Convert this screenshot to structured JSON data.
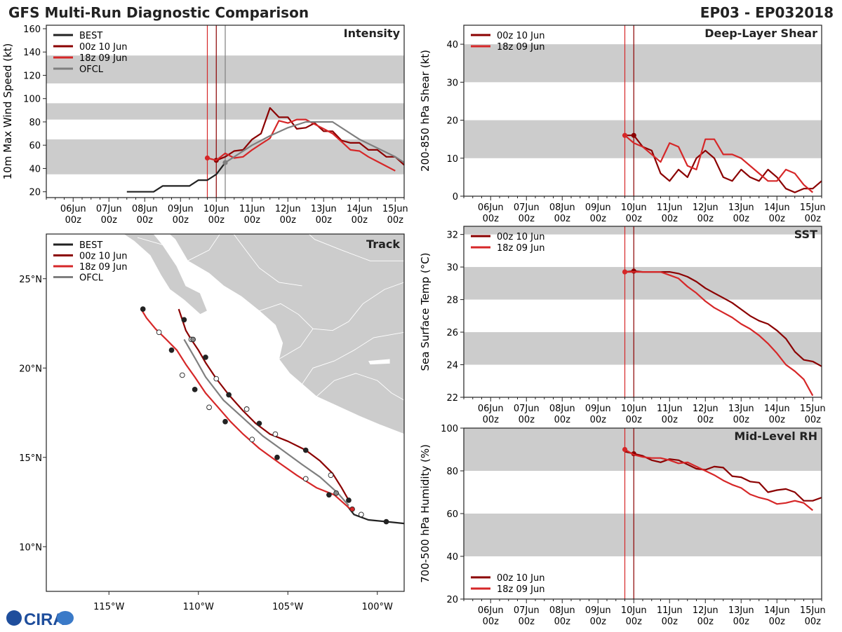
{
  "title_left": "GFS Multi-Run Diagnostic Comparison",
  "title_right": "EP03 - EP032018",
  "logo_text": "CIRA",
  "time_ticks": [
    {
      "t": 0,
      "l1": "06Jun",
      "l2": "00z"
    },
    {
      "t": 1,
      "l1": "07Jun",
      "l2": "00z"
    },
    {
      "t": 2,
      "l1": "08Jun",
      "l2": "00z"
    },
    {
      "t": 3,
      "l1": "09Jun",
      "l2": "00z"
    },
    {
      "t": 4,
      "l1": "10Jun",
      "l2": "00z"
    },
    {
      "t": 5,
      "l1": "11Jun",
      "l2": "00z"
    },
    {
      "t": 6,
      "l1": "12Jun",
      "l2": "00z"
    },
    {
      "t": 7,
      "l1": "13Jun",
      "l2": "00z"
    },
    {
      "t": 8,
      "l1": "14Jun",
      "l2": "00z"
    },
    {
      "t": 9,
      "l1": "15Jun",
      "l2": "00z"
    }
  ],
  "colors": {
    "best": "#222222",
    "run00z": "#8b0000",
    "run18z": "#d62728",
    "ofcl": "#7f7f7f",
    "band": "#cccccc",
    "land": "#cccccc"
  },
  "chart_data": [
    {
      "id": "intensity",
      "type": "line",
      "title": "Intensity",
      "ylabel": "10m Max Wind Speed (kt)",
      "xlim": [
        -0.75,
        9.25
      ],
      "ylim": [
        15,
        163
      ],
      "yticks": [
        20,
        40,
        60,
        80,
        100,
        120,
        140,
        160
      ],
      "bands": [
        [
          35,
          65
        ],
        [
          82,
          96
        ],
        [
          113,
          137
        ]
      ],
      "vlines": [
        {
          "t": 3.75,
          "color": "run18z"
        },
        {
          "t": 4.0,
          "color": "run00z"
        },
        {
          "t": 4.25,
          "color": "ofcl"
        }
      ],
      "legend_position": "top-left",
      "series": [
        {
          "name": "BEST",
          "color": "best",
          "t": [
            1.5,
            1.75,
            2,
            2.25,
            2.5,
            2.75,
            3,
            3.25,
            3.5,
            3.75,
            4,
            4.25
          ],
          "v": [
            20,
            20,
            20,
            20,
            25,
            25,
            25,
            25,
            30,
            30,
            35,
            45
          ]
        },
        {
          "name": "00z 10 Jun",
          "color": "run00z",
          "marker_t": 4.0,
          "t": [
            4,
            4.25,
            4.5,
            4.75,
            5,
            5.25,
            5.5,
            5.75,
            6,
            6.25,
            6.5,
            6.75,
            7,
            7.25,
            7.5,
            7.75,
            8,
            8.25,
            8.5,
            8.75,
            9,
            9.25
          ],
          "v": [
            47,
            50,
            55,
            56,
            65,
            70,
            92,
            84,
            84,
            74,
            75,
            79,
            72,
            72,
            64,
            62,
            62,
            56,
            56,
            50,
            50,
            43
          ]
        },
        {
          "name": "18z 09 Jun",
          "color": "run18z",
          "marker_t": 3.75,
          "t": [
            3.75,
            4,
            4.25,
            4.5,
            4.75,
            5,
            5.25,
            5.5,
            5.75,
            6,
            6.25,
            6.5,
            6.75,
            7,
            7.25,
            7.5,
            7.75,
            8,
            8.25,
            8.5,
            8.75,
            9
          ],
          "v": [
            49,
            47,
            53,
            49,
            50,
            56,
            61,
            66,
            81,
            79,
            82,
            82,
            78,
            74,
            70,
            63,
            56,
            55,
            50,
            46,
            42,
            38
          ]
        },
        {
          "name": "OFCL",
          "color": "ofcl",
          "marker_t": 4.25,
          "t": [
            4.25,
            4.5,
            5,
            5.5,
            6,
            6.5,
            7,
            7.25,
            8,
            9,
            9.25
          ],
          "v": [
            45,
            50,
            60,
            68,
            75,
            80,
            80,
            80,
            65,
            50,
            45
          ]
        }
      ]
    },
    {
      "id": "shear",
      "type": "line",
      "title": "Deep-Layer Shear",
      "ylabel": "200-850 hPa Shear (kt)",
      "xlim": [
        -0.75,
        9.25
      ],
      "ylim": [
        0,
        45
      ],
      "yticks": [
        0,
        10,
        20,
        30,
        40
      ],
      "bands": [
        [
          10,
          20
        ],
        [
          30,
          40
        ]
      ],
      "vlines": [
        {
          "t": 3.75,
          "color": "run18z"
        },
        {
          "t": 4.0,
          "color": "run00z"
        }
      ],
      "legend_position": "top-left",
      "series": [
        {
          "name": "00z 10 Jun",
          "color": "run00z",
          "marker_t": 4.0,
          "t": [
            3.75,
            4,
            4.25,
            4.5,
            4.75,
            5,
            5.25,
            5.5,
            5.75,
            6,
            6.25,
            6.5,
            6.75,
            7,
            7.25,
            7.5,
            7.75,
            8,
            8.25,
            8.5,
            8.75,
            9,
            9.25
          ],
          "v": [
            16,
            16,
            13,
            12,
            6,
            4,
            7,
            5,
            10,
            12,
            10,
            5,
            4,
            7,
            5,
            4,
            7,
            5,
            2,
            1,
            2,
            2,
            4
          ]
        },
        {
          "name": "18z 09 Jun",
          "color": "run18z",
          "marker_t": 3.75,
          "t": [
            3.75,
            4,
            4.25,
            4.5,
            4.75,
            5,
            5.25,
            5.5,
            5.75,
            6,
            6.25,
            6.5,
            6.75,
            7,
            7.25,
            7.5,
            7.75,
            8,
            8.25,
            8.5,
            8.75,
            9
          ],
          "v": [
            16,
            14,
            13,
            11,
            9,
            14,
            13,
            8,
            7,
            15,
            15,
            11,
            11,
            10,
            8,
            6,
            4,
            4,
            7,
            6,
            3,
            1
          ]
        }
      ]
    },
    {
      "id": "sst",
      "type": "line",
      "title": "SST",
      "ylabel": "Sea Surface Temp (°C)",
      "xlim": [
        -0.75,
        9.25
      ],
      "ylim": [
        22,
        32.5
      ],
      "yticks": [
        22,
        24,
        26,
        28,
        30,
        32
      ],
      "bands": [
        [
          24,
          26
        ],
        [
          28,
          30
        ],
        [
          32,
          32.5
        ]
      ],
      "vlines": [
        {
          "t": 3.75,
          "color": "run18z"
        },
        {
          "t": 4.0,
          "color": "run00z"
        }
      ],
      "legend_position": "top-left",
      "series": [
        {
          "name": "00z 10 Jun",
          "color": "run00z",
          "marker_t": 4.0,
          "t": [
            3.75,
            4,
            4.25,
            4.5,
            4.75,
            5,
            5.25,
            5.5,
            5.75,
            6,
            6.25,
            6.5,
            6.75,
            7,
            7.25,
            7.5,
            7.75,
            8,
            8.25,
            8.5,
            8.75,
            9,
            9.25
          ],
          "v": [
            29.7,
            29.75,
            29.7,
            29.7,
            29.7,
            29.7,
            29.6,
            29.4,
            29.1,
            28.7,
            28.4,
            28.1,
            27.8,
            27.4,
            27.0,
            26.7,
            26.5,
            26.1,
            25.6,
            24.8,
            24.3,
            24.2,
            23.9
          ]
        },
        {
          "name": "18z 09 Jun",
          "color": "run18z",
          "marker_t": 3.75,
          "t": [
            3.75,
            4,
            4.25,
            4.5,
            4.75,
            5,
            5.25,
            5.5,
            5.75,
            6,
            6.25,
            6.5,
            6.75,
            7,
            7.25,
            7.5,
            7.75,
            8,
            8.25,
            8.5,
            8.75,
            9
          ],
          "v": [
            29.7,
            29.7,
            29.7,
            29.7,
            29.7,
            29.5,
            29.3,
            28.8,
            28.4,
            27.9,
            27.5,
            27.2,
            26.9,
            26.5,
            26.2,
            25.8,
            25.3,
            24.7,
            24.0,
            23.6,
            23.1,
            22.1
          ]
        }
      ]
    },
    {
      "id": "rh",
      "type": "line",
      "title": "Mid-Level RH",
      "ylabel": "700-500 hPa Humidity (%)",
      "xlim": [
        -0.75,
        9.25
      ],
      "ylim": [
        20,
        100
      ],
      "yticks": [
        20,
        40,
        60,
        80,
        100
      ],
      "bands": [
        [
          40,
          60
        ],
        [
          80,
          100
        ]
      ],
      "vlines": [
        {
          "t": 3.75,
          "color": "run18z"
        },
        {
          "t": 4.0,
          "color": "run00z"
        }
      ],
      "legend_position": "bottom-left",
      "series": [
        {
          "name": "00z 10 Jun",
          "color": "run00z",
          "marker_t": 4.0,
          "t": [
            3.75,
            4,
            4.25,
            4.5,
            4.75,
            5,
            5.25,
            5.5,
            5.75,
            6,
            6.25,
            6.5,
            6.75,
            7,
            7.25,
            7.5,
            7.75,
            8,
            8.25,
            8.5,
            8.75,
            9,
            9.25
          ],
          "v": [
            89,
            88,
            87,
            85,
            84,
            85.5,
            85,
            83,
            81,
            80.5,
            82,
            81.5,
            77.5,
            77,
            75,
            74.5,
            70,
            71,
            71.5,
            70,
            66,
            66,
            67.5
          ]
        },
        {
          "name": "18z 09 Jun",
          "color": "run18z",
          "marker_t": 3.75,
          "t": [
            3.75,
            4,
            4.25,
            4.5,
            4.75,
            5,
            5.25,
            5.5,
            5.75,
            6,
            6.25,
            6.5,
            6.75,
            7,
            7.25,
            7.5,
            7.75,
            8,
            8.25,
            8.5,
            8.75,
            9
          ],
          "v": [
            90,
            87.5,
            86.5,
            86,
            86,
            85,
            83.5,
            84,
            82,
            80,
            78,
            75.5,
            73.5,
            72,
            69,
            67.5,
            66.5,
            64.5,
            65,
            66,
            65,
            61.5
          ]
        }
      ]
    },
    {
      "id": "track",
      "type": "line",
      "title": "Track",
      "xlabel": "",
      "ylabel": "",
      "xlim": [
        -118.5,
        -98.5
      ],
      "ylim": [
        7.5,
        27.5
      ],
      "xticks": [
        {
          "v": -115,
          "label": "115°W"
        },
        {
          "v": -110,
          "label": "110°W"
        },
        {
          "v": -105,
          "label": "105°W"
        },
        {
          "v": -100,
          "label": "100°W"
        }
      ],
      "yticks": [
        {
          "v": 10,
          "label": "10°N"
        },
        {
          "v": 15,
          "label": "15°N"
        },
        {
          "v": 20,
          "label": "20°N"
        },
        {
          "v": 25,
          "label": "25°N"
        }
      ],
      "legend_position": "top-left",
      "series": [
        {
          "name": "BEST",
          "color": "best",
          "lon": [
            -98.5,
            -99.5,
            -100.5,
            -101.3,
            -101.7
          ],
          "lat": [
            11.3,
            11.4,
            11.5,
            11.8,
            12.3
          ],
          "markers": [
            {
              "lon": -99.5,
              "lat": 11.4,
              "fill": "solid"
            },
            {
              "lon": -100.9,
              "lat": 11.8,
              "fill": "open"
            }
          ]
        },
        {
          "name": "00z 10 Jun",
          "color": "run00z",
          "lon": [
            -101.6,
            -102.0,
            -102.5,
            -103.2,
            -104.0,
            -105.0,
            -106.0,
            -106.8,
            -107.5,
            -108.3,
            -109.0,
            -109.6,
            -110.0,
            -110.4,
            -110.7,
            -110.9,
            -111.1
          ],
          "lat": [
            12.6,
            13.3,
            14.1,
            14.8,
            15.4,
            15.9,
            16.3,
            16.9,
            17.6,
            18.5,
            19.4,
            20.3,
            21.0,
            21.6,
            22.1,
            22.7,
            23.3
          ],
          "markers": [
            {
              "lon": -101.6,
              "lat": 12.6,
              "fill": "solid"
            },
            {
              "lon": -102.6,
              "lat": 14.0,
              "fill": "open"
            },
            {
              "lon": -104.0,
              "lat": 15.4,
              "fill": "solid"
            },
            {
              "lon": -105.7,
              "lat": 16.3,
              "fill": "open"
            },
            {
              "lon": -106.6,
              "lat": 16.9,
              "fill": "solid"
            },
            {
              "lon": -107.3,
              "lat": 17.7,
              "fill": "open"
            },
            {
              "lon": -108.3,
              "lat": 18.5,
              "fill": "solid"
            },
            {
              "lon": -109.0,
              "lat": 19.4,
              "fill": "open"
            },
            {
              "lon": -109.6,
              "lat": 20.6,
              "fill": "solid"
            },
            {
              "lon": -110.4,
              "lat": 21.6,
              "fill": "open"
            },
            {
              "lon": -110.8,
              "lat": 22.7,
              "fill": "solid"
            }
          ]
        },
        {
          "name": "18z 09 Jun",
          "color": "run18z",
          "lon": [
            -101.5,
            -102.4,
            -103.4,
            -104.5,
            -105.5,
            -106.6,
            -107.5,
            -108.2,
            -108.9,
            -109.6,
            -110.2,
            -110.7,
            -111.2,
            -111.8,
            -112.4,
            -112.9,
            -113.2
          ],
          "lat": [
            12.1,
            12.9,
            13.3,
            14.0,
            14.7,
            15.5,
            16.3,
            17.0,
            17.8,
            18.6,
            19.5,
            20.2,
            21.0,
            21.6,
            22.2,
            22.8,
            23.3
          ],
          "markers": [
            {
              "lon": -101.4,
              "lat": 12.1,
              "fill": "solid"
            },
            {
              "lon": -102.7,
              "lat": 12.9,
              "fill": "solid"
            },
            {
              "lon": -104.0,
              "lat": 13.8,
              "fill": "open"
            },
            {
              "lon": -105.6,
              "lat": 15.0,
              "fill": "solid"
            },
            {
              "lon": -107.0,
              "lat": 16.0,
              "fill": "open"
            },
            {
              "lon": -108.5,
              "lat": 17.0,
              "fill": "solid"
            },
            {
              "lon": -109.4,
              "lat": 17.8,
              "fill": "open"
            },
            {
              "lon": -110.2,
              "lat": 18.8,
              "fill": "solid"
            },
            {
              "lon": -110.9,
              "lat": 19.6,
              "fill": "open"
            },
            {
              "lon": -111.5,
              "lat": 21.0,
              "fill": "solid"
            },
            {
              "lon": -112.2,
              "lat": 22.0,
              "fill": "open"
            },
            {
              "lon": -113.1,
              "lat": 23.3,
              "fill": "solid"
            }
          ]
        },
        {
          "name": "OFCL",
          "color": "ofcl",
          "lon": [
            -101.6,
            -102.2,
            -103.2,
            -104.2,
            -105.3,
            -106.4,
            -107.5,
            -108.6,
            -109.6,
            -110.1,
            -110.8
          ],
          "lat": [
            12.3,
            13.0,
            13.9,
            14.6,
            15.4,
            16.2,
            17.2,
            18.2,
            19.5,
            20.4,
            21.6
          ],
          "markers": [
            {
              "lon": -102.3,
              "lat": 13.0,
              "fill": "gray"
            },
            {
              "lon": -110.3,
              "lat": 21.6,
              "fill": "gray"
            }
          ]
        }
      ]
    }
  ]
}
